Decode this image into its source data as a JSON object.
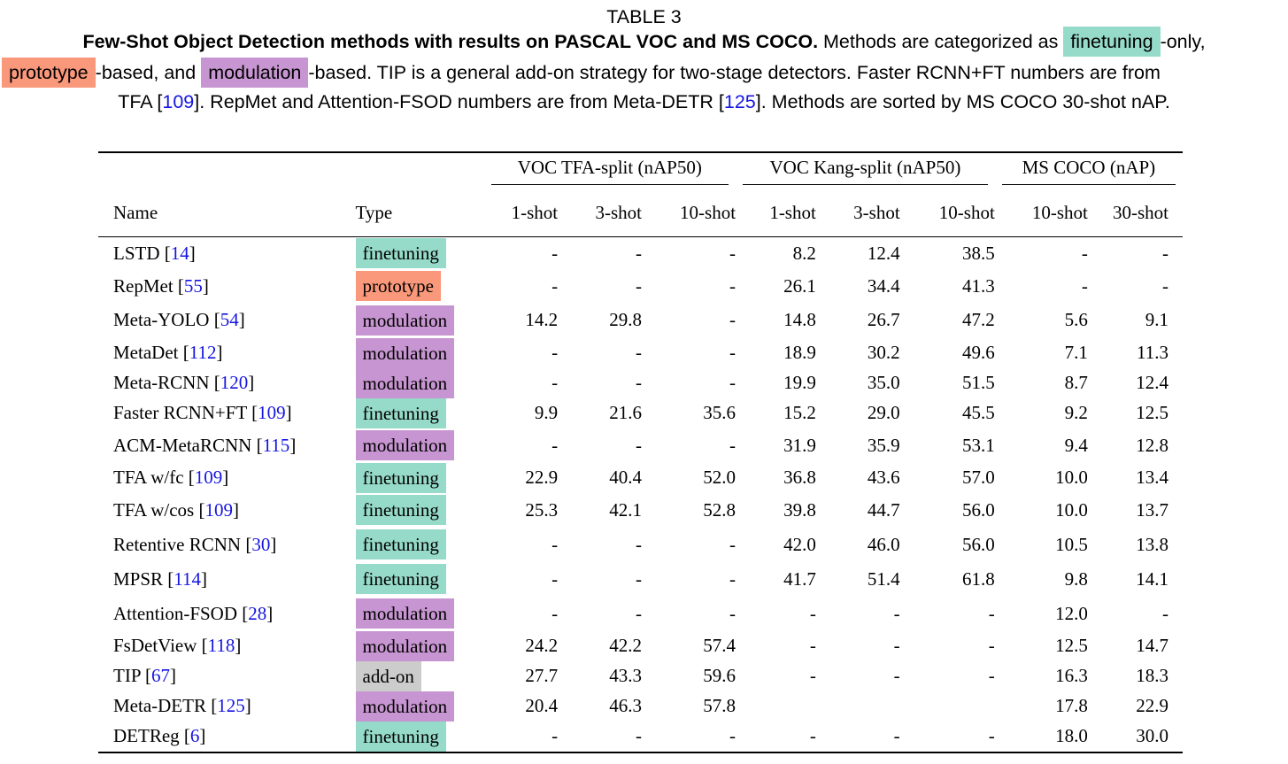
{
  "caption": {
    "label": "TABLE 3",
    "bold": "Few-Shot Object Detection methods with results on PASCAL VOC and MS COCO.",
    "t1": " Methods are categorized as ",
    "hl_finetuning": "finetuning",
    "t2": "-only,",
    "hl_prototype": "prototype",
    "t3": "-based, and ",
    "hl_modulation": "modulation",
    "t4": "-based. TIP is a general add-on strategy for two-stage detectors. Faster RCNN+FT numbers are from",
    "t5": "TFA [",
    "ref_a": "109",
    "t6": "]. RepMet and Attention-FSOD numbers are from Meta-DETR [",
    "ref_b": "125",
    "t7": "]. Methods are sorted by MS COCO 30-shot nAP."
  },
  "colors": {
    "finetuning": "#96dbc9",
    "prototype": "#f9987a",
    "modulation": "#c795d1",
    "add-on": "#cccccc",
    "link": "#1515e0"
  },
  "table": {
    "groups": [
      "VOC TFA-split (nAP50)",
      "VOC Kang-split (nAP50)",
      "MS COCO (nAP)"
    ],
    "headers": [
      "Name",
      "Type",
      "1-shot",
      "3-shot",
      "10-shot",
      "1-shot",
      "3-shot",
      "10-shot",
      "10-shot",
      "30-shot"
    ],
    "rows": [
      {
        "name": "LSTD [",
        "ref": "14",
        "close": "]",
        "type": "finetuning",
        "values": [
          "-",
          "-",
          "-",
          "8.2",
          "12.4",
          "38.5",
          "-",
          "-"
        ]
      },
      {
        "name": "RepMet [",
        "ref": "55",
        "close": "]",
        "type": "prototype",
        "values": [
          "-",
          "-",
          "-",
          "26.1",
          "34.4",
          "41.3",
          "-",
          "-"
        ]
      },
      {
        "name": "Meta-YOLO [",
        "ref": "54",
        "close": "]",
        "type": "modulation",
        "values": [
          "14.2",
          "29.8",
          "-",
          "14.8",
          "26.7",
          "47.2",
          "5.6",
          "9.1"
        ]
      },
      {
        "name": "MetaDet [",
        "ref": "112",
        "close": "]",
        "type": "modulation",
        "values": [
          "-",
          "-",
          "-",
          "18.9",
          "30.2",
          "49.6",
          "7.1",
          "11.3"
        ]
      },
      {
        "name": "Meta-RCNN [",
        "ref": "120",
        "close": "]",
        "type": "modulation",
        "values": [
          "-",
          "-",
          "-",
          "19.9",
          "35.0",
          "51.5",
          "8.7",
          "12.4"
        ]
      },
      {
        "name": "Faster RCNN+FT [",
        "ref": "109",
        "close": "]",
        "type": "finetuning",
        "values": [
          "9.9",
          "21.6",
          "35.6",
          "15.2",
          "29.0",
          "45.5",
          "9.2",
          "12.5"
        ]
      },
      {
        "name": "ACM-MetaRCNN [",
        "ref": "115",
        "close": "]",
        "type": "modulation",
        "values": [
          "-",
          "-",
          "-",
          "31.9",
          "35.9",
          "53.1",
          "9.4",
          "12.8"
        ]
      },
      {
        "name": "TFA w/fc [",
        "ref": "109",
        "close": "]",
        "type": "finetuning",
        "values": [
          "22.9",
          "40.4",
          "52.0",
          "36.8",
          "43.6",
          "57.0",
          "10.0",
          "13.4"
        ]
      },
      {
        "name": "TFA w/cos [",
        "ref": "109",
        "close": "]",
        "type": "finetuning",
        "values": [
          "25.3",
          "42.1",
          "52.8",
          "39.8",
          "44.7",
          "56.0",
          "10.0",
          "13.7"
        ]
      },
      {
        "name": "Retentive RCNN [",
        "ref": "30",
        "close": "]",
        "type": "finetuning",
        "values": [
          "-",
          "-",
          "-",
          "42.0",
          "46.0",
          "56.0",
          "10.5",
          "13.8"
        ]
      },
      {
        "name": "MPSR [",
        "ref": "114",
        "close": "]",
        "type": "finetuning",
        "values": [
          "-",
          "-",
          "-",
          "41.7",
          "51.4",
          "61.8",
          "9.8",
          "14.1"
        ]
      },
      {
        "name": "Attention-FSOD [",
        "ref": "28",
        "close": "]",
        "type": "modulation",
        "values": [
          "-",
          "-",
          "-",
          "-",
          "-",
          "-",
          "12.0",
          "-"
        ]
      },
      {
        "name": "FsDetView [",
        "ref": "118",
        "close": "]",
        "type": "modulation",
        "values": [
          "24.2",
          "42.2",
          "57.4",
          "-",
          "-",
          "-",
          "12.5",
          "14.7"
        ]
      },
      {
        "name": "TIP [",
        "ref": "67",
        "close": "]",
        "type": "add-on",
        "values": [
          "27.7",
          "43.3",
          "59.6",
          "-",
          "-",
          "-",
          "16.3",
          "18.3"
        ]
      },
      {
        "name": "Meta-DETR [",
        "ref": "125",
        "close": "]",
        "type": "modulation",
        "values": [
          "20.4",
          "46.3",
          "57.8",
          "",
          "",
          "",
          "17.8",
          "22.9"
        ]
      },
      {
        "name": "DETReg [",
        "ref": "6",
        "close": "]",
        "type": "finetuning",
        "values": [
          "-",
          "-",
          "-",
          "-",
          "-",
          "-",
          "18.0",
          "30.0"
        ]
      }
    ]
  }
}
